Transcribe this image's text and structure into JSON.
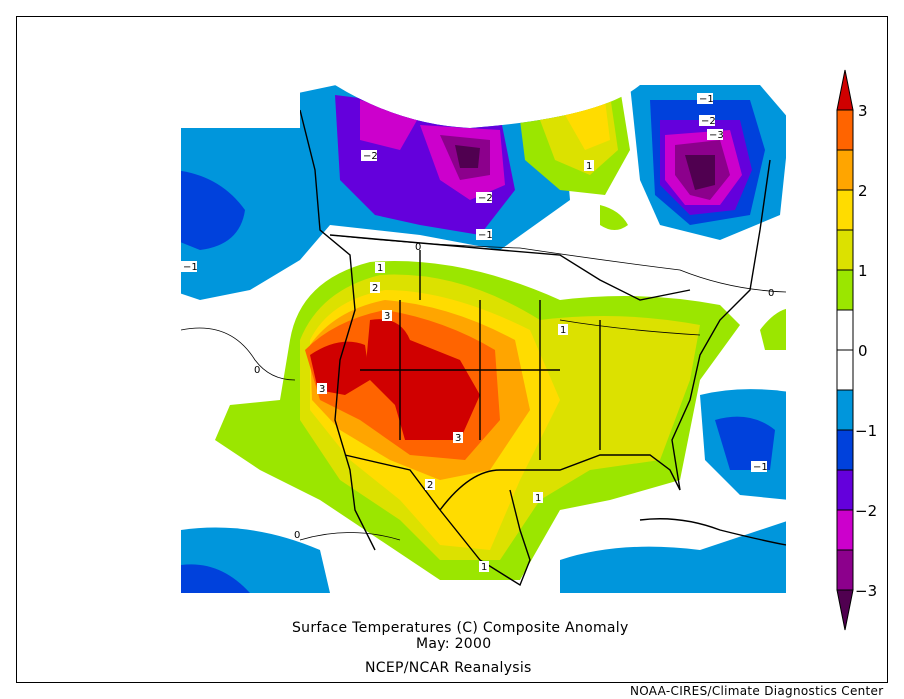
{
  "title": {
    "line1": "Surface Temperatures (C)   Composite Anomaly",
    "line2": "May: 2000",
    "line3": "NCEP/NCAR Reanalysis"
  },
  "credit": "NOAA-CIRES/Climate Diagnostics Center",
  "colorbar": {
    "units": "C",
    "ticks": [
      "3",
      "2",
      "1",
      "0",
      "−1",
      "−2",
      "−3"
    ],
    "bins": [
      {
        "range": ">3",
        "color": "#d00000"
      },
      {
        "range": "2.5 to 3",
        "color": "#ff6400"
      },
      {
        "range": "2 to 2.5",
        "color": "#ffa500"
      },
      {
        "range": "1.5 to 2",
        "color": "#ffdc00"
      },
      {
        "range": "1 to 1.5",
        "color": "#dce100"
      },
      {
        "range": "0.5 to 1",
        "color": "#9be600"
      },
      {
        "range": "0 to 0.5",
        "color": "#ffffff"
      },
      {
        "range": "-0.5 to 0",
        "color": "#ffffff"
      },
      {
        "range": "-1 to -0.5",
        "color": "#0096dc"
      },
      {
        "range": "-1.5 to -1",
        "color": "#0041dc"
      },
      {
        "range": "-2 to -1.5",
        "color": "#6400dc"
      },
      {
        "range": "-2.5 to -2",
        "color": "#cc00cc"
      },
      {
        "range": "-3 to -2.5",
        "color": "#8c008c"
      },
      {
        "range": "<-3",
        "color": "#500050"
      }
    ]
  },
  "contour_labels": [
    "−1",
    "−2",
    "−3",
    "−2",
    "−2",
    "−1",
    "−1",
    "0",
    "0",
    "0",
    "0",
    "1",
    "1",
    "1",
    "1",
    "1",
    "1",
    "2",
    "2",
    "3",
    "3",
    "3",
    "−1"
  ]
}
